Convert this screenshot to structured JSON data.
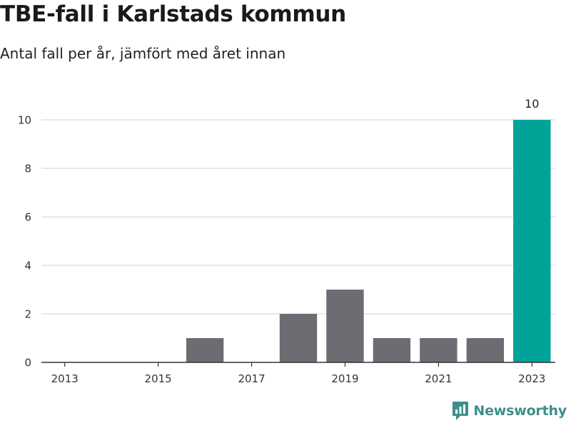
{
  "title": "TBE-fall i Karlstads kommun",
  "subtitle": "Antal fall per år, jämfört med året innan",
  "brand": "Newsworthy",
  "colors": {
    "bar": "#6d6c72",
    "highlight": "#00a398",
    "grid": "#dcdcdc",
    "axis": "#333333",
    "brand": "#3d8f8a"
  },
  "chart_data": {
    "type": "bar",
    "categories": [
      "2013",
      "2014",
      "2015",
      "2016",
      "2017",
      "2018",
      "2019",
      "2020",
      "2021",
      "2022",
      "2023"
    ],
    "values": [
      0,
      0,
      0,
      1,
      0,
      2,
      3,
      1,
      1,
      1,
      10
    ],
    "highlight_index": 10,
    "data_labels": [
      {
        "category": "2023",
        "text": "10"
      }
    ],
    "x_tick_labels": [
      "2013",
      "2015",
      "2017",
      "2019",
      "2021",
      "2023"
    ],
    "y_ticks": [
      0,
      2,
      4,
      6,
      8,
      10
    ],
    "ylim": [
      0,
      10
    ],
    "grid": true,
    "legend": "none"
  }
}
